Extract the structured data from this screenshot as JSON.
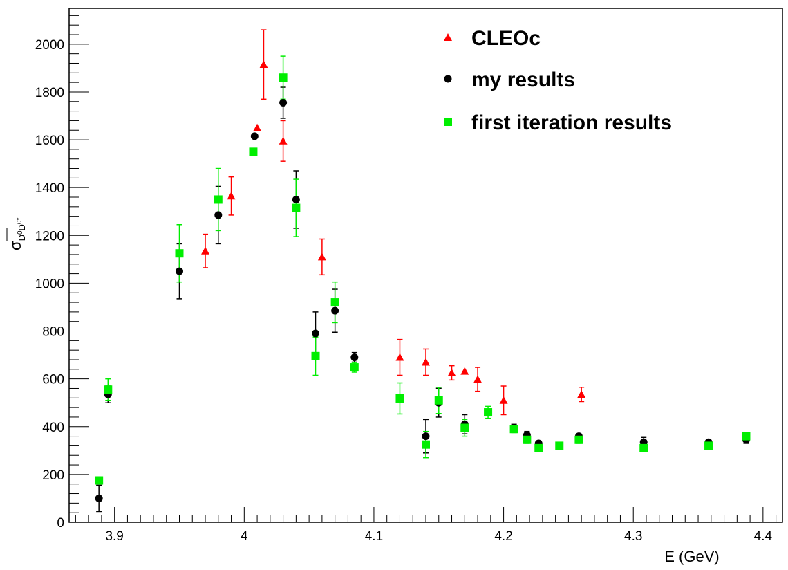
{
  "chart_data": {
    "type": "scatter",
    "xlabel": "E (GeV)",
    "ylabel": {
      "main": "σ",
      "sub": "D",
      "sub_bar": "0",
      "sub2": "D",
      "sub2_sup": "0*"
    },
    "xlim": [
      3.865,
      4.415
    ],
    "ylim": [
      0,
      2150
    ],
    "x_ticks": [
      3.9,
      4.0,
      4.1,
      4.2,
      4.3,
      4.4
    ],
    "x_tick_labels": [
      "3.9",
      "4",
      "4.1",
      "4.2",
      "4.3",
      "4.4"
    ],
    "y_ticks": [
      0,
      200,
      400,
      600,
      800,
      1000,
      1200,
      1400,
      1600,
      1800,
      2000
    ],
    "y_tick_labels": [
      "0",
      "200",
      "400",
      "600",
      "800",
      "1000",
      "1200",
      "1400",
      "1600",
      "1800",
      "2000"
    ],
    "grid": false,
    "legend_position": "top-right",
    "series": [
      {
        "name": "CLEOc",
        "marker": "triangle",
        "color": "#ff0000",
        "points": [
          {
            "x": 3.97,
            "y": 1135,
            "err": 70
          },
          {
            "x": 3.99,
            "y": 1365,
            "err": 80
          },
          {
            "x": 4.01,
            "y": 1650,
            "err": 0
          },
          {
            "x": 4.015,
            "y": 1915,
            "err": 145
          },
          {
            "x": 4.03,
            "y": 1595,
            "err": 85
          },
          {
            "x": 4.06,
            "y": 1110,
            "err": 75
          },
          {
            "x": 4.12,
            "y": 690,
            "err": 75
          },
          {
            "x": 4.14,
            "y": 670,
            "err": 55
          },
          {
            "x": 4.16,
            "y": 625,
            "err": 30
          },
          {
            "x": 4.17,
            "y": 632,
            "err": 0
          },
          {
            "x": 4.18,
            "y": 598,
            "err": 50
          },
          {
            "x": 4.2,
            "y": 510,
            "err": 60
          },
          {
            "x": 4.26,
            "y": 535,
            "err": 30
          }
        ]
      },
      {
        "name": "my results",
        "marker": "circle",
        "color": "#000000",
        "points": [
          {
            "x": 3.888,
            "y": 100,
            "err": 55
          },
          {
            "x": 3.895,
            "y": 535,
            "err": 35
          },
          {
            "x": 3.95,
            "y": 1050,
            "err": 115
          },
          {
            "x": 3.98,
            "y": 1285,
            "err": 120
          },
          {
            "x": 4.008,
            "y": 1615,
            "err": 0
          },
          {
            "x": 4.03,
            "y": 1755,
            "err": 65
          },
          {
            "x": 4.04,
            "y": 1350,
            "err": 120
          },
          {
            "x": 4.055,
            "y": 790,
            "err": 90
          },
          {
            "x": 4.07,
            "y": 885,
            "err": 90
          },
          {
            "x": 4.085,
            "y": 690,
            "err": 20
          },
          {
            "x": 4.14,
            "y": 360,
            "err": 70
          },
          {
            "x": 4.15,
            "y": 500,
            "err": 60
          },
          {
            "x": 4.17,
            "y": 410,
            "err": 40
          },
          {
            "x": 4.208,
            "y": 395,
            "err": 15
          },
          {
            "x": 4.218,
            "y": 365,
            "err": 15
          },
          {
            "x": 4.227,
            "y": 330,
            "err": 10
          },
          {
            "x": 4.258,
            "y": 360,
            "err": 10
          },
          {
            "x": 4.308,
            "y": 335,
            "err": 20
          },
          {
            "x": 4.358,
            "y": 335,
            "err": 10
          },
          {
            "x": 4.387,
            "y": 345,
            "err": 15
          }
        ]
      },
      {
        "name": "first iteration results",
        "marker": "square",
        "color": "#00ee00",
        "points": [
          {
            "x": 3.888,
            "y": 175,
            "err": 15
          },
          {
            "x": 3.895,
            "y": 555,
            "err": 45
          },
          {
            "x": 3.95,
            "y": 1125,
            "err": 120
          },
          {
            "x": 3.98,
            "y": 1350,
            "err": 130
          },
          {
            "x": 4.007,
            "y": 1550,
            "err": 0
          },
          {
            "x": 4.03,
            "y": 1860,
            "err": 90
          },
          {
            "x": 4.04,
            "y": 1315,
            "err": 120
          },
          {
            "x": 4.055,
            "y": 695,
            "err": 80
          },
          {
            "x": 4.07,
            "y": 920,
            "err": 85
          },
          {
            "x": 4.085,
            "y": 648,
            "err": 20
          },
          {
            "x": 4.12,
            "y": 518,
            "err": 65
          },
          {
            "x": 4.14,
            "y": 325,
            "err": 55
          },
          {
            "x": 4.15,
            "y": 510,
            "err": 55
          },
          {
            "x": 4.17,
            "y": 395,
            "err": 35
          },
          {
            "x": 4.188,
            "y": 460,
            "err": 25
          },
          {
            "x": 4.208,
            "y": 390,
            "err": 15
          },
          {
            "x": 4.218,
            "y": 345,
            "err": 15
          },
          {
            "x": 4.227,
            "y": 310,
            "err": 15
          },
          {
            "x": 4.243,
            "y": 320,
            "err": 10
          },
          {
            "x": 4.258,
            "y": 345,
            "err": 15
          },
          {
            "x": 4.308,
            "y": 310,
            "err": 15
          },
          {
            "x": 4.358,
            "y": 320,
            "err": 15
          },
          {
            "x": 4.387,
            "y": 360,
            "err": 15
          }
        ]
      }
    ]
  }
}
